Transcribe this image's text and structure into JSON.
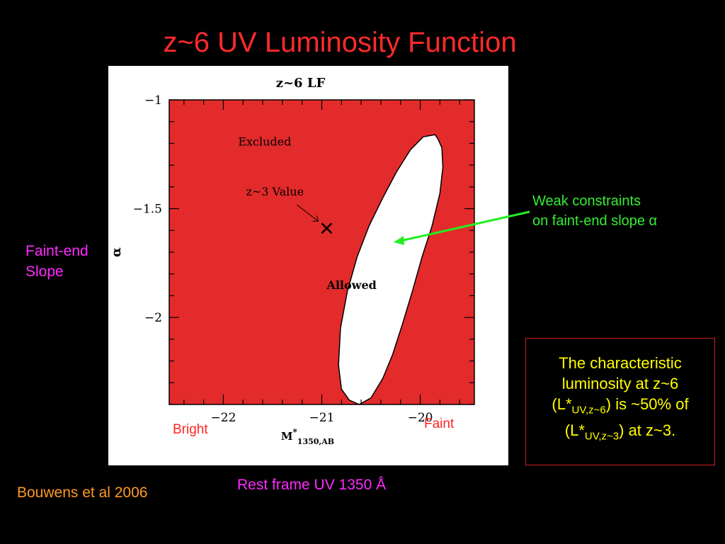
{
  "slide": {
    "title": "z~6 UV Luminosity Function",
    "left_label": "Faint-end Slope",
    "annotation_line1": "Weak constraints",
    "annotation_line2": "on faint-end slope α",
    "box_line1": "The characteristic",
    "box_line2": "luminosity at z~6",
    "box_l_prefix": "(L*",
    "box_sub1": "UV,z~6",
    "box_mid": ") is ~50% of",
    "box_sub2": "UV,z~3",
    "box_suffix": ") at z~3.",
    "citation": "Bouwens et al 2006",
    "xaxis_caption": "Rest frame UV 1350 Å",
    "bright_label": "Bright",
    "faint_label": "Faint"
  },
  "colors": {
    "title": "#ff2a2a",
    "excluded_region": "#e32b2b",
    "allowed_region": "#ffffff",
    "arrow": "#22ee22"
  },
  "chart_data": {
    "type": "area",
    "title": "z~6 LF",
    "xlabel": "M*1350,AB",
    "ylabel": "α",
    "xlim": [
      -22.55,
      -19.45
    ],
    "ylim": [
      -2.4,
      -1.0
    ],
    "x_ticks": [
      -22,
      -21,
      -20
    ],
    "y_ticks": [
      -1,
      -1.5,
      -2
    ],
    "x_tick_labels": [
      "−22",
      "−21",
      "−20"
    ],
    "y_tick_labels": [
      "−1",
      "−1.5",
      "−2"
    ],
    "regions": [
      {
        "name": "Excluded",
        "label": "Excluded"
      },
      {
        "name": "Allowed",
        "label": "Allowed",
        "contour": [
          [
            -19.85,
            -1.16
          ],
          [
            -19.82,
            -1.18
          ],
          [
            -19.78,
            -1.22
          ],
          [
            -19.77,
            -1.31
          ],
          [
            -19.8,
            -1.43
          ],
          [
            -19.88,
            -1.58
          ],
          [
            -19.98,
            -1.72
          ],
          [
            -20.08,
            -1.88
          ],
          [
            -20.18,
            -2.03
          ],
          [
            -20.28,
            -2.17
          ],
          [
            -20.38,
            -2.28
          ],
          [
            -20.5,
            -2.37
          ],
          [
            -20.62,
            -2.4
          ],
          [
            -20.72,
            -2.38
          ],
          [
            -20.8,
            -2.33
          ],
          [
            -20.83,
            -2.22
          ],
          [
            -20.81,
            -2.05
          ],
          [
            -20.74,
            -1.88
          ],
          [
            -20.64,
            -1.72
          ],
          [
            -20.52,
            -1.58
          ],
          [
            -20.38,
            -1.45
          ],
          [
            -20.24,
            -1.33
          ],
          [
            -20.1,
            -1.23
          ],
          [
            -19.97,
            -1.17
          ]
        ]
      }
    ],
    "points": [
      {
        "label": "z~3 Value",
        "x": -20.95,
        "y": -1.59,
        "marker": "x"
      }
    ]
  }
}
